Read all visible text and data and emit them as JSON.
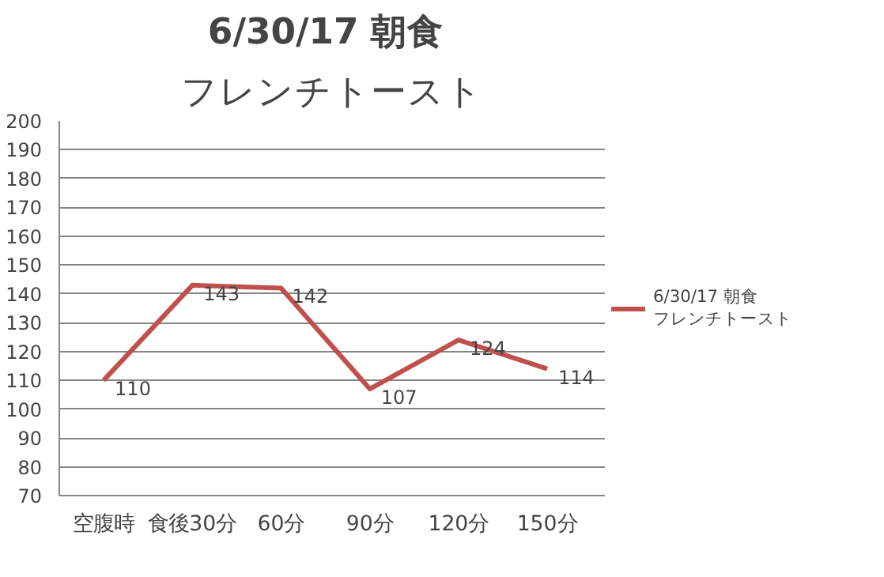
{
  "chart_data": {
    "type": "line",
    "title": "6/30/17  朝食",
    "subtitle": "フレンチトースト",
    "categories": [
      "空腹時",
      "食後30分",
      "60分",
      "90分",
      "120分",
      "150分"
    ],
    "series": [
      {
        "name": "6/30/17 朝食フレンチトースト",
        "color": "#c0504d",
        "values": [
          110,
          143,
          142,
          107,
          124,
          114
        ]
      }
    ],
    "ylim": [
      70,
      200
    ],
    "yticks": [
      70,
      80,
      90,
      100,
      110,
      120,
      130,
      140,
      150,
      160,
      170,
      180,
      190,
      200
    ],
    "grid": "y",
    "legend": "right",
    "data_labels": true,
    "marker": "none",
    "line_style": "solid"
  }
}
